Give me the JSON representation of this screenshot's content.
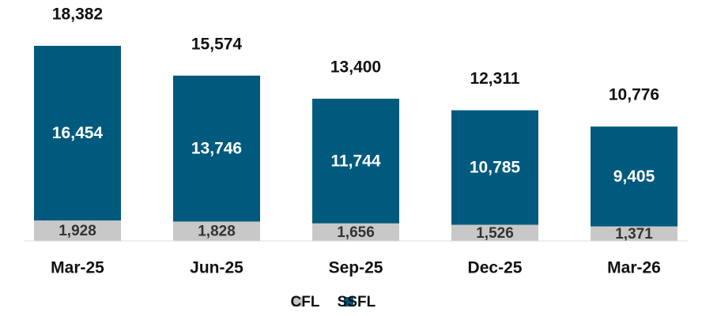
{
  "chart_data": {
    "type": "stacked_bar",
    "categories": [
      "Mar-25",
      "Jun-25",
      "Sep-25",
      "Dec-25",
      "Mar-26"
    ],
    "series": [
      {
        "name": "CFL",
        "color": "#c8c8c8",
        "values": [
          1928,
          1828,
          1656,
          1526,
          1371
        ],
        "value_labels": [
          "1,928",
          "1,828",
          "1,656",
          "1,526",
          "1,371"
        ]
      },
      {
        "name": "SSFL",
        "color": "#005a7d",
        "values": [
          16454,
          13746,
          11744,
          10785,
          9405
        ],
        "value_labels": [
          "16,454",
          "13,746",
          "11,744",
          "10,785",
          "9,405"
        ]
      }
    ],
    "totals": {
      "values": [
        18382,
        15574,
        13400,
        12311,
        10776
      ],
      "value_labels": [
        "18,382",
        "15,574",
        "13,400",
        "12,311",
        "10,776"
      ]
    },
    "legend": "bottom"
  }
}
